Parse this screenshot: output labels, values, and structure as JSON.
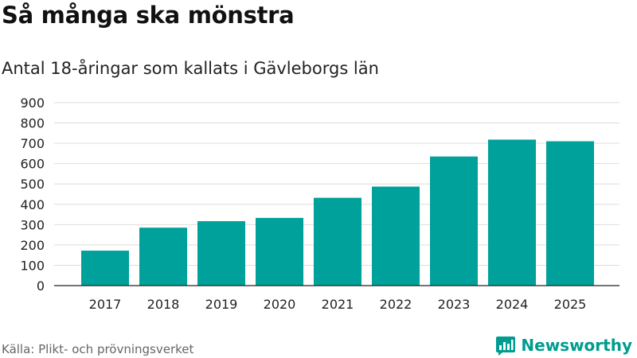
{
  "title": "Så många ska mönstra",
  "subtitle": "Antal 18-åringar som kallats i Gävleborgs län",
  "source": "Källa: Plikt- och prövningsverket",
  "brand": {
    "name": "Newsworthy",
    "icon": "newsworthy-logo-icon"
  },
  "colors": {
    "bar": "#00a19a",
    "grid": "#dddddd",
    "axis": "#222222",
    "brand": "#009c8f"
  },
  "chart_data": {
    "type": "bar",
    "title": "Så många ska mönstra",
    "subtitle": "Antal 18-åringar som kallats i Gävleborgs län",
    "xlabel": "",
    "ylabel": "",
    "categories": [
      "2017",
      "2018",
      "2019",
      "2020",
      "2021",
      "2022",
      "2023",
      "2024",
      "2025"
    ],
    "values": [
      172,
      285,
      317,
      333,
      432,
      487,
      635,
      718,
      710
    ],
    "ylim": [
      0,
      900
    ],
    "yticks": [
      0,
      100,
      200,
      300,
      400,
      500,
      600,
      700,
      800,
      900
    ],
    "grid": true,
    "legend": "none"
  }
}
